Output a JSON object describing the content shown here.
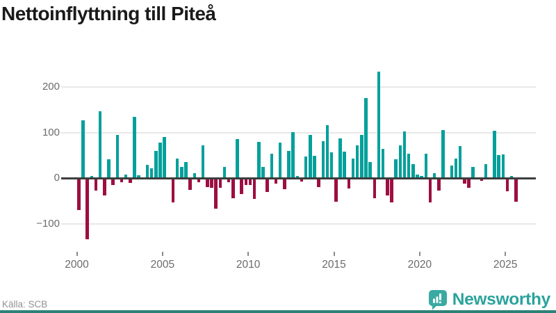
{
  "title": "Nettoinflyttning till Piteå",
  "source": "Källa: SCB",
  "brand": {
    "name": "Newsworthy",
    "icon": "bar-chart-pin-icon"
  },
  "colors": {
    "positive_bar": "#00a09b",
    "negative_bar": "#9d0e41",
    "gridline": "#e8e8e8",
    "zero_line": "#3d3d3d",
    "axis_text": "#6b6b6b",
    "title_text": "#1a1a1a",
    "source_text": "#929292",
    "brand_teal": "#2ba39c",
    "footer_strip": "#2b8177"
  },
  "chart_data": {
    "type": "bar",
    "title": "Nettoinflyttning till Piteå",
    "periodicity": "quarterly",
    "start": "2000 Q1",
    "end": "2025 Q3",
    "values": [
      -70,
      127,
      -133,
      5,
      -27,
      146,
      -38,
      42,
      -14,
      95,
      -8,
      8,
      -10,
      134,
      6,
      0,
      29,
      21,
      60,
      78,
      90,
      0,
      -52,
      43,
      24,
      35,
      -25,
      10,
      -8,
      72,
      -19,
      -21,
      -66,
      -20,
      24,
      -9,
      -44,
      86,
      -35,
      -15,
      -15,
      -45,
      80,
      25,
      -30,
      54,
      -12,
      78,
      -23,
      59,
      101,
      5,
      -7,
      47,
      94,
      49,
      -19,
      81,
      116,
      57,
      -51,
      87,
      58,
      -22,
      43,
      72,
      95,
      175,
      35,
      -44,
      234,
      64,
      -38,
      -53,
      42,
      72,
      103,
      54,
      31,
      7,
      5,
      54,
      -52,
      10,
      -26,
      105,
      0,
      27,
      43,
      71,
      -11,
      -20,
      24,
      0,
      -5,
      30,
      0,
      104,
      50,
      52,
      -28,
      5,
      -51
    ],
    "start_year": 2000,
    "xticks": [
      "2000",
      "2005",
      "2010",
      "2015",
      "2020",
      "2025"
    ],
    "yticks": [
      200,
      100,
      0,
      -100
    ],
    "ytick_labels": [
      "200",
      "100",
      "0",
      "−100"
    ],
    "ylim": [
      -150,
      250
    ],
    "grid": "horizontal",
    "legend": "none",
    "xlabel": "",
    "ylabel": ""
  }
}
